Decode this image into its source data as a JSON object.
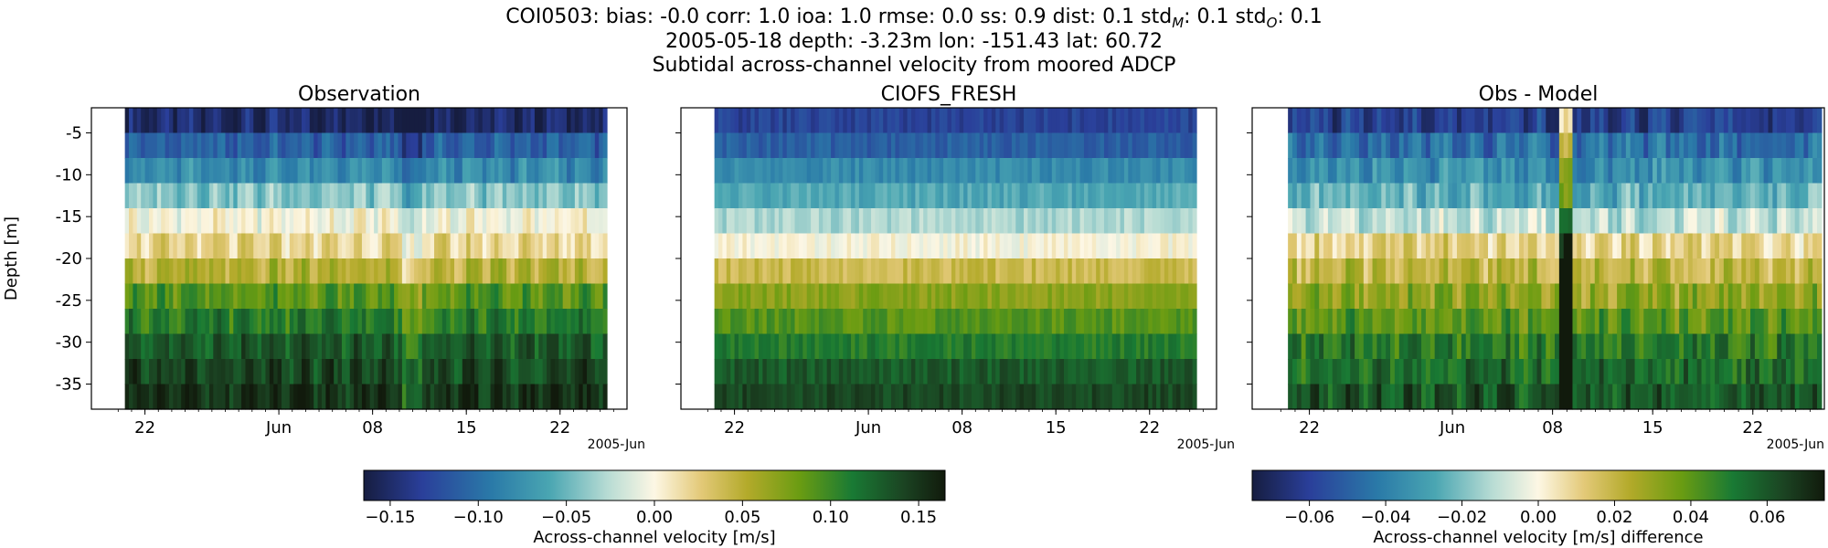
{
  "header": {
    "line1_prefix": "COI0503: bias: -0.0  corr: 1.0  ioa: 1.0  rmse: 0.0  ss: 0.9  dist: 0.1  std",
    "line1_sub_m": "M",
    "line1_mid": ": 0.1  std",
    "line1_sub_o": "O",
    "line1_suffix": ": 0.1",
    "line2": "2005-05-18 depth: -3.23m lon: -151.43 lat: 60.72",
    "line3": "Subtidal across-channel velocity from moored ADCP"
  },
  "chart_data": [
    {
      "type": "heatmap",
      "title": "Observation",
      "ylabel": "Depth [m]",
      "ylim": [
        -38,
        -2
      ],
      "xlim_days": [
        -2,
        38
      ],
      "x_ticks": [
        "22",
        "Jun",
        "08",
        "15",
        "22"
      ],
      "x_offset_label": "2005-Jun",
      "y_ticks": [
        "-5",
        "-10",
        "-15",
        "-20",
        "-25",
        "-30",
        "-35"
      ],
      "depth_bins": [
        -3.5,
        -6.5,
        -9.5,
        -12.5,
        -15.5,
        -18.5,
        -21.5,
        -24.5,
        -27.5,
        -30.5,
        -33.5,
        -36.5
      ],
      "profile_values": [
        -0.15,
        -0.11,
        -0.08,
        -0.04,
        0.0,
        0.02,
        0.05,
        0.09,
        0.11,
        0.13,
        0.14,
        0.15
      ],
      "colormap_range": [
        -0.165,
        0.165
      ]
    },
    {
      "type": "heatmap",
      "title": "CIOFS_FRESH",
      "ylim": [
        -38,
        -2
      ],
      "xlim_days": [
        -2,
        38
      ],
      "x_ticks": [
        "22",
        "Jun",
        "08",
        "15",
        "22"
      ],
      "x_offset_label": "2005-Jun",
      "depth_bins": [
        -3.5,
        -6.5,
        -9.5,
        -12.5,
        -15.5,
        -18.5,
        -21.5,
        -24.5,
        -27.5,
        -30.5,
        -33.5,
        -36.5
      ],
      "profile_values": [
        -0.13,
        -0.11,
        -0.08,
        -0.06,
        -0.03,
        0.0,
        0.04,
        0.07,
        0.09,
        0.11,
        0.13,
        0.14
      ],
      "colormap_range": [
        -0.165,
        0.165
      ]
    },
    {
      "type": "heatmap",
      "title": "Obs - Model",
      "ylim": [
        -38,
        -2
      ],
      "xlim_days": [
        -2,
        38
      ],
      "x_ticks": [
        "22",
        "Jun",
        "08",
        "15",
        "22"
      ],
      "x_offset_label": "2005-Jun",
      "depth_bins": [
        -3.5,
        -6.5,
        -9.5,
        -12.5,
        -15.5,
        -18.5,
        -21.5,
        -24.5,
        -27.5,
        -30.5,
        -33.5,
        -36.5
      ],
      "profile_values": [
        -0.06,
        -0.045,
        -0.035,
        -0.025,
        -0.01,
        0.01,
        0.02,
        0.03,
        0.04,
        0.05,
        0.055,
        0.06
      ],
      "colormap_range": [
        -0.075,
        0.075
      ]
    }
  ],
  "colorbars": [
    {
      "label": "Across-channel velocity [m/s]",
      "range": [
        -0.165,
        0.165
      ],
      "ticks": [
        {
          "value": -0.15,
          "label": "−0.15"
        },
        {
          "value": -0.1,
          "label": "−0.10"
        },
        {
          "value": -0.05,
          "label": "−0.05"
        },
        {
          "value": 0.0,
          "label": "0.00"
        },
        {
          "value": 0.05,
          "label": "0.05"
        },
        {
          "value": 0.1,
          "label": "0.10"
        },
        {
          "value": 0.15,
          "label": "0.15"
        }
      ]
    },
    {
      "label": "Across-channel velocity [m/s] difference",
      "range": [
        -0.075,
        0.075
      ],
      "ticks": [
        {
          "value": -0.06,
          "label": "−0.06"
        },
        {
          "value": -0.04,
          "label": "−0.04"
        },
        {
          "value": -0.02,
          "label": "−0.02"
        },
        {
          "value": 0.0,
          "label": "0.00"
        },
        {
          "value": 0.02,
          "label": "0.02"
        },
        {
          "value": 0.04,
          "label": "0.04"
        },
        {
          "value": 0.06,
          "label": "0.06"
        }
      ]
    }
  ],
  "colors": {
    "colormap_stops": [
      "#161d40",
      "#2a3f9a",
      "#3592b0",
      "#93cdc8",
      "#fdf7e4",
      "#e8cf7a",
      "#a8a81a",
      "#5b9a10",
      "#157436",
      "#1b3a1b",
      "#111a0c"
    ]
  }
}
